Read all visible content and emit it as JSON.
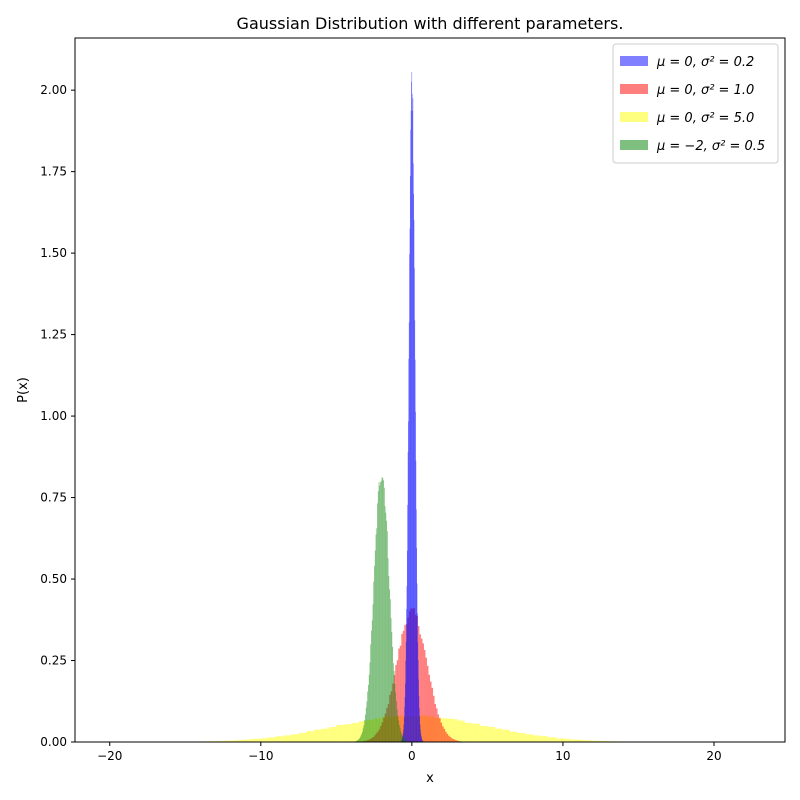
{
  "chart_data": {
    "type": "bar",
    "title": "Gaussian Distribution with different parameters.",
    "xlabel": "x",
    "ylabel": "P(x)",
    "xlim": [
      -22.3,
      24.7
    ],
    "ylim": [
      0,
      2.16
    ],
    "xticks": [
      -20,
      -10,
      0,
      10,
      20
    ],
    "xtick_labels": [
      "−20",
      "−10",
      "0",
      "10",
      "20"
    ],
    "yticks": [
      0,
      0.25,
      0.5,
      0.75,
      1.0,
      1.25,
      1.5,
      1.75,
      2.0
    ],
    "ytick_labels": [
      "0.00",
      "0.25",
      "0.50",
      "0.75",
      "1.00",
      "1.25",
      "1.50",
      "1.75",
      "2.00"
    ],
    "grid": false,
    "legend_position": "top-right",
    "series": [
      {
        "name": "μ = 0, σ² = 0.2",
        "mu": 0,
        "sigma": 0.2,
        "color": "#0000ff",
        "opacity": 0.5,
        "bin_width": 0.025,
        "x_range": [
          -0.85,
          0.85
        ],
        "peak": 2.03,
        "x": [
          -0.6,
          -0.5,
          -0.4,
          -0.3,
          -0.2,
          -0.1,
          0,
          0.1,
          0.2,
          0.3,
          0.4,
          0.5,
          0.6
        ],
        "values": [
          0.022,
          0.088,
          0.27,
          0.65,
          1.21,
          1.76,
          2.0,
          1.76,
          1.21,
          0.65,
          0.27,
          0.088,
          0.022
        ]
      },
      {
        "name": "μ = 0, σ² = 1.0",
        "mu": 0,
        "sigma": 1.0,
        "color": "#ff0000",
        "opacity": 0.5,
        "bin_width": 0.1,
        "x_range": [
          -3.8,
          3.8
        ],
        "peak": 0.4,
        "x": [
          -3,
          -2,
          -1,
          0,
          1,
          2,
          3
        ],
        "values": [
          0.004,
          0.054,
          0.242,
          0.399,
          0.242,
          0.054,
          0.004
        ]
      },
      {
        "name": "μ = 0, σ² = 5.0",
        "mu": 0,
        "sigma": 5.0,
        "color": "#ffff00",
        "opacity": 0.5,
        "bin_width": 0.5,
        "x_range": [
          -20,
          20
        ],
        "peak": 0.08,
        "x": [
          -15,
          -10,
          -5,
          0,
          5,
          10,
          15
        ],
        "values": [
          0.0009,
          0.0108,
          0.0484,
          0.0798,
          0.0484,
          0.0108,
          0.0009
        ]
      },
      {
        "name": "μ = −2, σ² = 0.5",
        "mu": -2,
        "sigma": 0.5,
        "color": "#008000",
        "opacity": 0.5,
        "bin_width": 0.05,
        "x_range": [
          -4,
          0
        ],
        "peak": 0.83,
        "x": [
          -3.5,
          -3,
          -2.5,
          -2,
          -1.5,
          -1,
          -0.5
        ],
        "values": [
          0.009,
          0.108,
          0.484,
          0.798,
          0.484,
          0.108,
          0.009
        ]
      }
    ]
  }
}
